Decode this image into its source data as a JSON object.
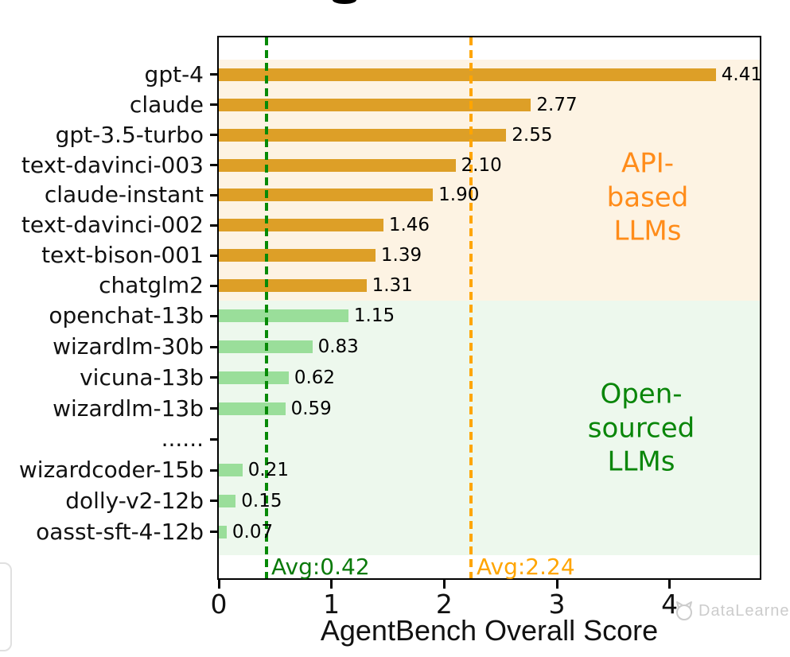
{
  "watermark": {
    "text": "DataLearner"
  },
  "chart_data": {
    "type": "bar",
    "orientation": "horizontal",
    "title": "",
    "xlabel": "AgentBench Overall Score",
    "ylabel": "",
    "xlim": [
      0,
      4.8
    ],
    "x_ticks": [
      "0",
      "1",
      "2",
      "3",
      "4"
    ],
    "grid": false,
    "rows": [
      {
        "label": "gpt-4",
        "value": 4.41,
        "value_label": "4.41",
        "group": "api"
      },
      {
        "label": "claude",
        "value": 2.77,
        "value_label": "2.77",
        "group": "api"
      },
      {
        "label": "gpt-3.5-turbo",
        "value": 2.55,
        "value_label": "2.55",
        "group": "api"
      },
      {
        "label": "text-davinci-003",
        "value": 2.1,
        "value_label": "2.10",
        "group": "api"
      },
      {
        "label": "claude-instant",
        "value": 1.9,
        "value_label": "1.90",
        "group": "api"
      },
      {
        "label": "text-davinci-002",
        "value": 1.46,
        "value_label": "1.46",
        "group": "api"
      },
      {
        "label": "text-bison-001",
        "value": 1.39,
        "value_label": "1.39",
        "group": "api"
      },
      {
        "label": "chatglm2",
        "value": 1.31,
        "value_label": "1.31",
        "group": "api"
      },
      {
        "label": "openchat-13b",
        "value": 1.15,
        "value_label": "1.15",
        "group": "open"
      },
      {
        "label": "wizardlm-30b",
        "value": 0.83,
        "value_label": "0.83",
        "group": "open"
      },
      {
        "label": "vicuna-13b",
        "value": 0.62,
        "value_label": "0.62",
        "group": "open"
      },
      {
        "label": "wizardlm-13b",
        "value": 0.59,
        "value_label": "0.59",
        "group": "open"
      },
      {
        "label": "......",
        "value": null,
        "value_label": "",
        "group": "open"
      },
      {
        "label": "wizardcoder-15b",
        "value": 0.21,
        "value_label": "0.21",
        "group": "open"
      },
      {
        "label": "dolly-v2-12b",
        "value": 0.15,
        "value_label": "0.15",
        "group": "open"
      },
      {
        "label": "oasst-sft-4-12b",
        "value": 0.07,
        "value_label": "0.07",
        "group": "open"
      }
    ],
    "regions": [
      {
        "group": "api",
        "label": "API-based\nLLMs"
      },
      {
        "group": "open",
        "label": "Open-sourced\nLLMs"
      }
    ],
    "avg_lines": [
      {
        "group": "open",
        "value": 0.42,
        "label": "Avg:0.42"
      },
      {
        "group": "api",
        "value": 2.24,
        "label": "Avg:2.24"
      }
    ],
    "colors": {
      "api_bar": "#DD9F27",
      "open_bar": "#9ADE9A",
      "api_band": "#FDF3E3",
      "open_band": "#EDF8ED",
      "api_line": "#FFA500",
      "open_line": "#078A07",
      "api_region_text": "#FF8C1A",
      "open_region_text": "#0A860A",
      "avg_api_text": "#FFA500",
      "avg_open_text": "#0B7A0B",
      "axis": "#000000"
    }
  }
}
